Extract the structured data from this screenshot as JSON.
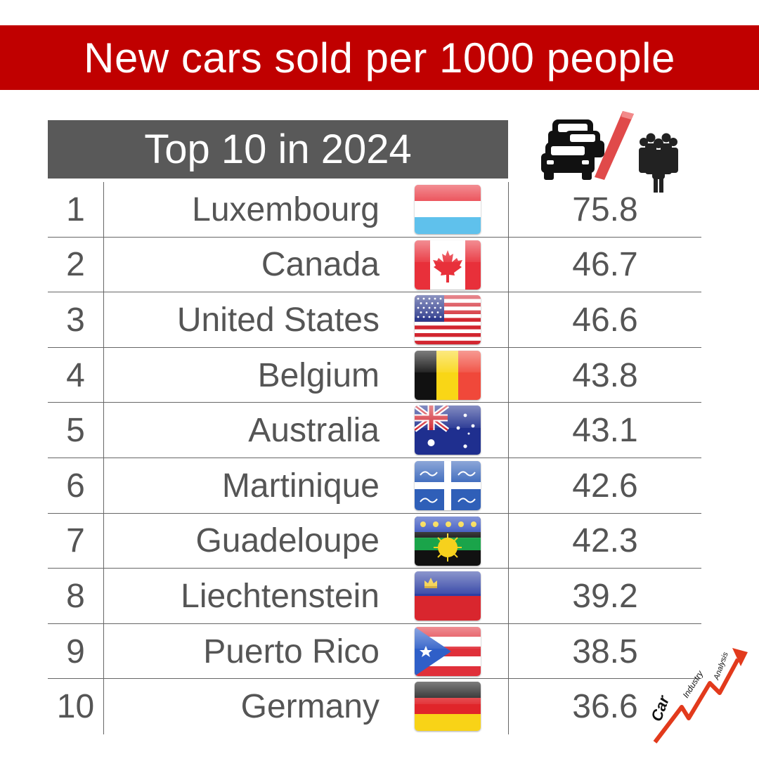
{
  "title": "New cars sold per 1000 people",
  "subtitle": "Top 10 in 2024",
  "icons": {
    "header_icon": "cars-per-people-icon",
    "logo": "car-industry-analysis-logo"
  },
  "logo_text": {
    "word1": "Car",
    "word2": "Industry",
    "word3": "Analysis"
  },
  "colors": {
    "title_bg": "#c00000",
    "subtitle_bg": "#595959",
    "text": "#555555"
  },
  "chart_data": {
    "type": "table",
    "title": "New cars sold per 1000 people",
    "subtitle": "Top 10 in 2024",
    "rows": [
      {
        "rank": "1",
        "country": "Luxembourg",
        "value": "75.8"
      },
      {
        "rank": "2",
        "country": "Canada",
        "value": "46.7"
      },
      {
        "rank": "3",
        "country": "United States",
        "value": "46.6"
      },
      {
        "rank": "4",
        "country": "Belgium",
        "value": "43.8"
      },
      {
        "rank": "5",
        "country": "Australia",
        "value": "43.1"
      },
      {
        "rank": "6",
        "country": "Martinique",
        "value": "42.6"
      },
      {
        "rank": "7",
        "country": "Guadeloupe",
        "value": "42.3"
      },
      {
        "rank": "8",
        "country": "Liechtenstein",
        "value": "39.2"
      },
      {
        "rank": "9",
        "country": "Puerto Rico",
        "value": "38.5"
      },
      {
        "rank": "10",
        "country": "Germany",
        "value": "36.6"
      }
    ]
  }
}
